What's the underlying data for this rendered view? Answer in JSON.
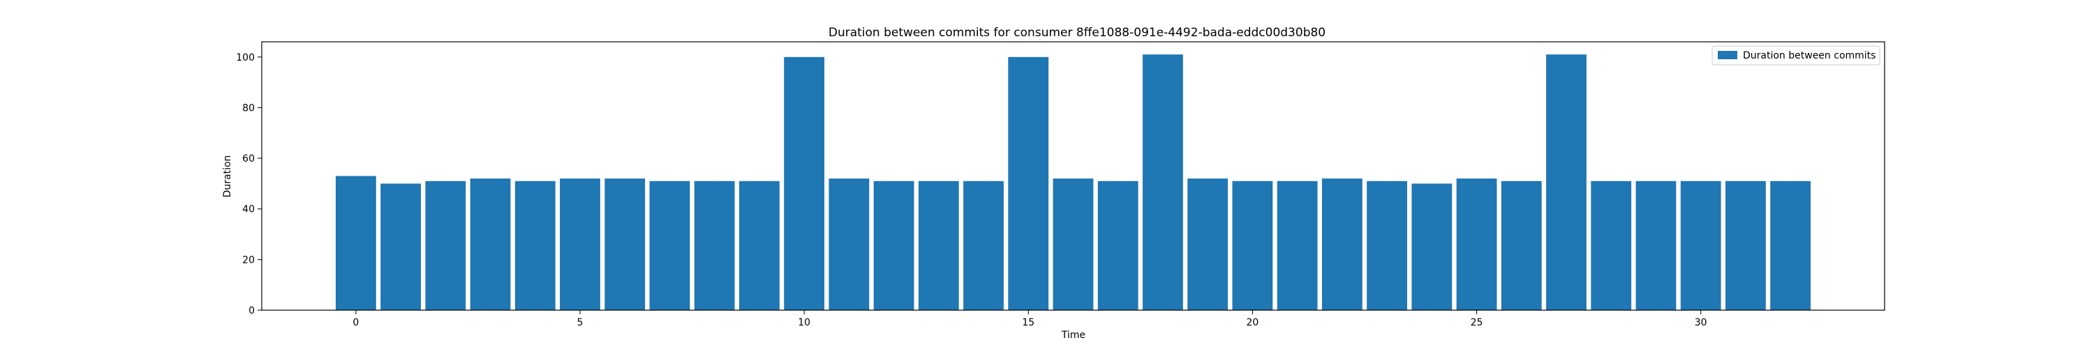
{
  "chart_data": {
    "type": "bar",
    "title": "Duration between commits for consumer 8ffe1088-091e-4492-bada-eddc00d30b80",
    "xlabel": "Time",
    "ylabel": "Duration",
    "xlim": [
      -2.1,
      34.1
    ],
    "ylim": [
      0,
      106
    ],
    "xticks": [
      0,
      5,
      10,
      15,
      20,
      25,
      30
    ],
    "yticks": [
      0,
      20,
      40,
      60,
      80,
      100
    ],
    "grid": false,
    "legend_position": "top-right",
    "series": [
      {
        "name": "Duration between commits",
        "color": "#1f77b4",
        "x": [
          0,
          1,
          2,
          3,
          4,
          5,
          6,
          7,
          8,
          9,
          10,
          11,
          12,
          13,
          14,
          15,
          16,
          17,
          18,
          19,
          20,
          21,
          22,
          23,
          24,
          25,
          26,
          27,
          28,
          29,
          30,
          31,
          32
        ],
        "values": [
          53,
          50,
          51,
          52,
          51,
          52,
          52,
          51,
          51,
          51,
          100,
          52,
          51,
          51,
          51,
          100,
          52,
          51,
          101,
          52,
          51,
          51,
          52,
          51,
          50,
          52,
          51,
          101,
          51,
          51,
          51,
          51,
          51
        ]
      }
    ]
  }
}
